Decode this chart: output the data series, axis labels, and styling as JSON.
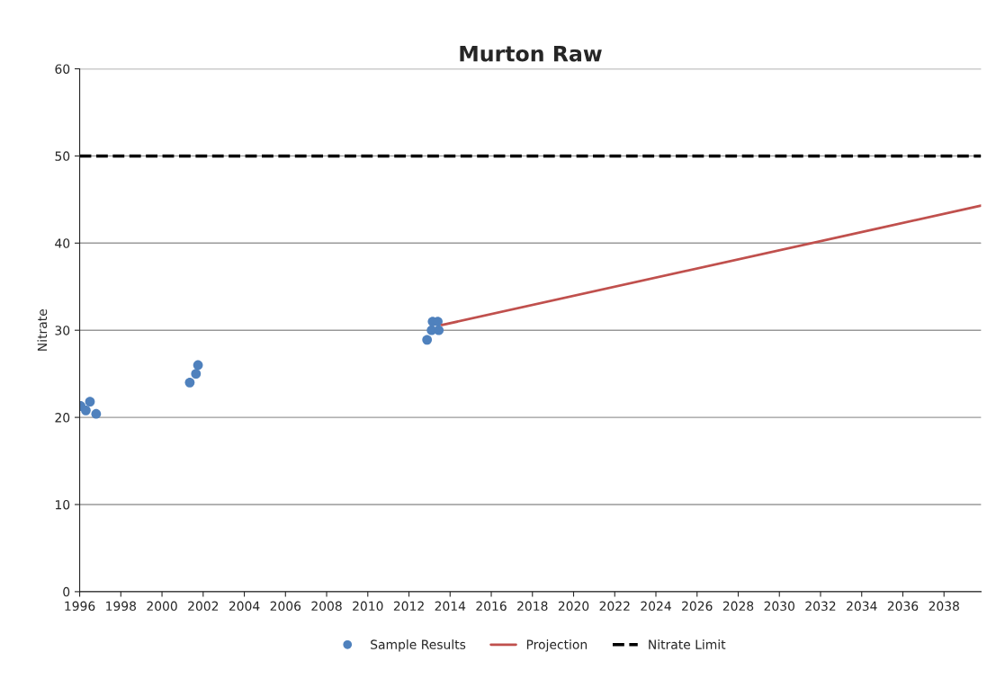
{
  "chart_data": {
    "type": "scatter",
    "title": "Murton Raw",
    "ylabel": "Nitrate",
    "xlim": [
      1996,
      2039.8
    ],
    "xticks": [
      1996,
      1998,
      2000,
      2002,
      2004,
      2006,
      2008,
      2010,
      2012,
      2014,
      2016,
      2018,
      2020,
      2022,
      2024,
      2026,
      2028,
      2030,
      2032,
      2034,
      2036,
      2038
    ],
    "ylim": [
      0,
      60
    ],
    "yticks": [
      0,
      10,
      20,
      30,
      40,
      50,
      60
    ],
    "grid": "y",
    "legend": "bottom",
    "series": [
      {
        "name": "Sample Results",
        "color": "#4f81bd",
        "marker": "circle",
        "x": [
          1996.05,
          1996.3,
          1996.5,
          1996.8,
          2001.35,
          2001.65,
          2001.75,
          2012.88,
          2013.1,
          2013.15,
          2013.4,
          2013.45
        ],
        "values": [
          21.3,
          20.8,
          21.8,
          20.4,
          24,
          25,
          26,
          28.9,
          30,
          31,
          31,
          30
        ]
      },
      {
        "name": "Projection",
        "type": "line",
        "color": "#c0504d",
        "marker": "none",
        "line_style": "solid",
        "x": [
          2013.6,
          2039.8
        ],
        "values": [
          30.6,
          44.3
        ]
      }
    ],
    "ref_lines": [
      {
        "axis": "y",
        "value": 50,
        "label": "Nitrate Limit",
        "color": "#000000",
        "line_style": "dashed"
      }
    ]
  }
}
